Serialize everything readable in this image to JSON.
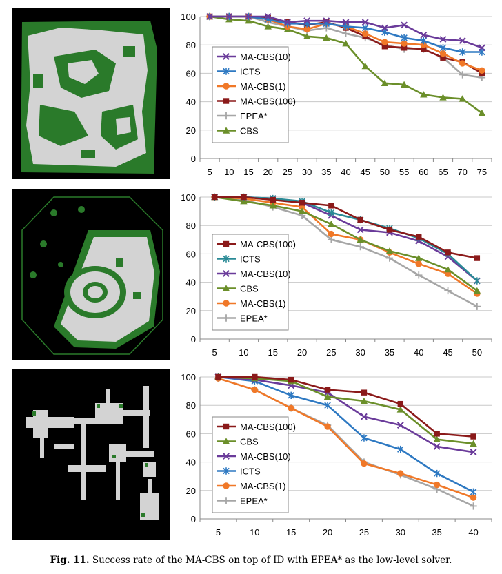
{
  "caption": {
    "label": "Fig. 11.",
    "text": "Success rate of the MA-CBS on top of ID with EPEA* as the low-level solver."
  },
  "colors": {
    "MA-CBS(10)": "#6a3b9a",
    "ICTS": "#2e79c2",
    "MA-CBS(1)": "#f07828",
    "MA-CBS(100)": "#8b1a1a",
    "EPEA*": "#a6a6a6",
    "CBS": "#6b8f2a",
    "ICTS_panel2": "#2a8a96"
  },
  "maps": [
    {
      "name": "map-1",
      "colors": {
        "background": "#000000",
        "free": "#d3d3d3",
        "border": "#2a7a2a"
      }
    },
    {
      "name": "map-2",
      "colors": {
        "background": "#000000",
        "free": "#d3d3d3",
        "border": "#2a7a2a"
      }
    },
    {
      "name": "map-3",
      "colors": {
        "background": "#000000",
        "free": "#d3d3d3",
        "border": "#2a7a2a"
      }
    }
  ],
  "chart_data": [
    {
      "type": "line",
      "title": "",
      "xlabel": "",
      "ylabel": "",
      "ylim": [
        0,
        100
      ],
      "yticks": [
        0,
        20,
        40,
        60,
        80,
        100
      ],
      "categories": [
        5,
        10,
        15,
        20,
        25,
        30,
        35,
        40,
        45,
        50,
        55,
        60,
        65,
        70,
        75
      ],
      "legend_position": "left",
      "series": [
        {
          "name": "MA-CBS(10)",
          "marker": "x",
          "values": [
            100,
            100,
            100,
            100,
            96,
            97,
            97,
            96,
            96,
            92,
            94,
            87,
            84,
            83,
            78
          ]
        },
        {
          "name": "ICTS",
          "marker": "asterisk",
          "values": [
            100,
            100,
            100,
            98,
            95,
            95,
            95,
            93,
            92,
            89,
            85,
            83,
            78,
            75,
            75
          ]
        },
        {
          "name": "MA-CBS(1)",
          "marker": "circle",
          "values": [
            100,
            100,
            100,
            98,
            93,
            91,
            95,
            93,
            88,
            82,
            81,
            80,
            74,
            67,
            62
          ]
        },
        {
          "name": "MA-CBS(100)",
          "marker": "square",
          "values": [
            100,
            100,
            100,
            99,
            96,
            94,
            96,
            92,
            86,
            79,
            78,
            77,
            71,
            68,
            60
          ]
        },
        {
          "name": "EPEA*",
          "marker": "plus",
          "values": [
            100,
            100,
            100,
            96,
            93,
            90,
            92,
            88,
            85,
            80,
            77,
            77,
            71,
            59,
            57
          ]
        },
        {
          "name": "CBS",
          "marker": "triangle",
          "values": [
            100,
            98,
            97,
            93,
            91,
            86,
            85,
            81,
            65,
            53,
            52,
            45,
            43,
            42,
            32
          ]
        }
      ]
    },
    {
      "type": "line",
      "title": "",
      "xlabel": "",
      "ylabel": "",
      "ylim": [
        0,
        100
      ],
      "yticks": [
        0,
        20,
        40,
        60,
        80,
        100
      ],
      "categories": [
        5,
        10,
        15,
        20,
        25,
        30,
        35,
        40,
        45,
        50
      ],
      "legend_position": "left",
      "series": [
        {
          "name": "MA-CBS(100)",
          "marker": "square",
          "values": [
            100,
            100,
            98,
            96,
            94,
            84,
            77,
            72,
            61,
            57
          ]
        },
        {
          "name": "ICTS",
          "marker": "asterisk",
          "values": [
            100,
            100,
            99,
            97,
            89,
            84,
            78,
            71,
            60,
            41
          ]
        },
        {
          "name": "MA-CBS(10)",
          "marker": "x",
          "values": [
            100,
            100,
            99,
            96,
            87,
            77,
            75,
            69,
            58,
            41
          ]
        },
        {
          "name": "CBS",
          "marker": "triangle",
          "values": [
            100,
            97,
            94,
            90,
            81,
            70,
            62,
            57,
            49,
            34
          ]
        },
        {
          "name": "MA-CBS(1)",
          "marker": "circle",
          "values": [
            100,
            99,
            96,
            93,
            74,
            70,
            61,
            53,
            46,
            32
          ]
        },
        {
          "name": "EPEA*",
          "marker": "plus",
          "values": [
            100,
            98,
            93,
            87,
            70,
            65,
            57,
            45,
            34,
            23
          ]
        }
      ]
    },
    {
      "type": "line",
      "title": "",
      "xlabel": "",
      "ylabel": "",
      "ylim": [
        0,
        100
      ],
      "yticks": [
        0,
        20,
        40,
        60,
        80,
        100
      ],
      "categories": [
        5,
        10,
        15,
        20,
        25,
        30,
        35,
        40
      ],
      "legend_position": "left",
      "series": [
        {
          "name": "MA-CBS(100)",
          "marker": "square",
          "values": [
            100,
            100,
            98,
            91,
            89,
            81,
            60,
            58
          ]
        },
        {
          "name": "CBS",
          "marker": "triangle",
          "values": [
            100,
            99,
            97,
            86,
            83,
            77,
            56,
            53
          ]
        },
        {
          "name": "MA-CBS(10)",
          "marker": "x",
          "values": [
            100,
            98,
            94,
            89,
            72,
            66,
            51,
            47
          ]
        },
        {
          "name": "ICTS",
          "marker": "asterisk",
          "values": [
            100,
            97,
            87,
            80,
            57,
            49,
            32,
            19
          ]
        },
        {
          "name": "MA-CBS(1)",
          "marker": "circle",
          "values": [
            99,
            91,
            78,
            65,
            39,
            32,
            24,
            15
          ]
        },
        {
          "name": "EPEA*",
          "marker": "plus",
          "values": [
            99,
            91,
            78,
            66,
            40,
            31,
            21,
            9
          ]
        }
      ]
    }
  ]
}
